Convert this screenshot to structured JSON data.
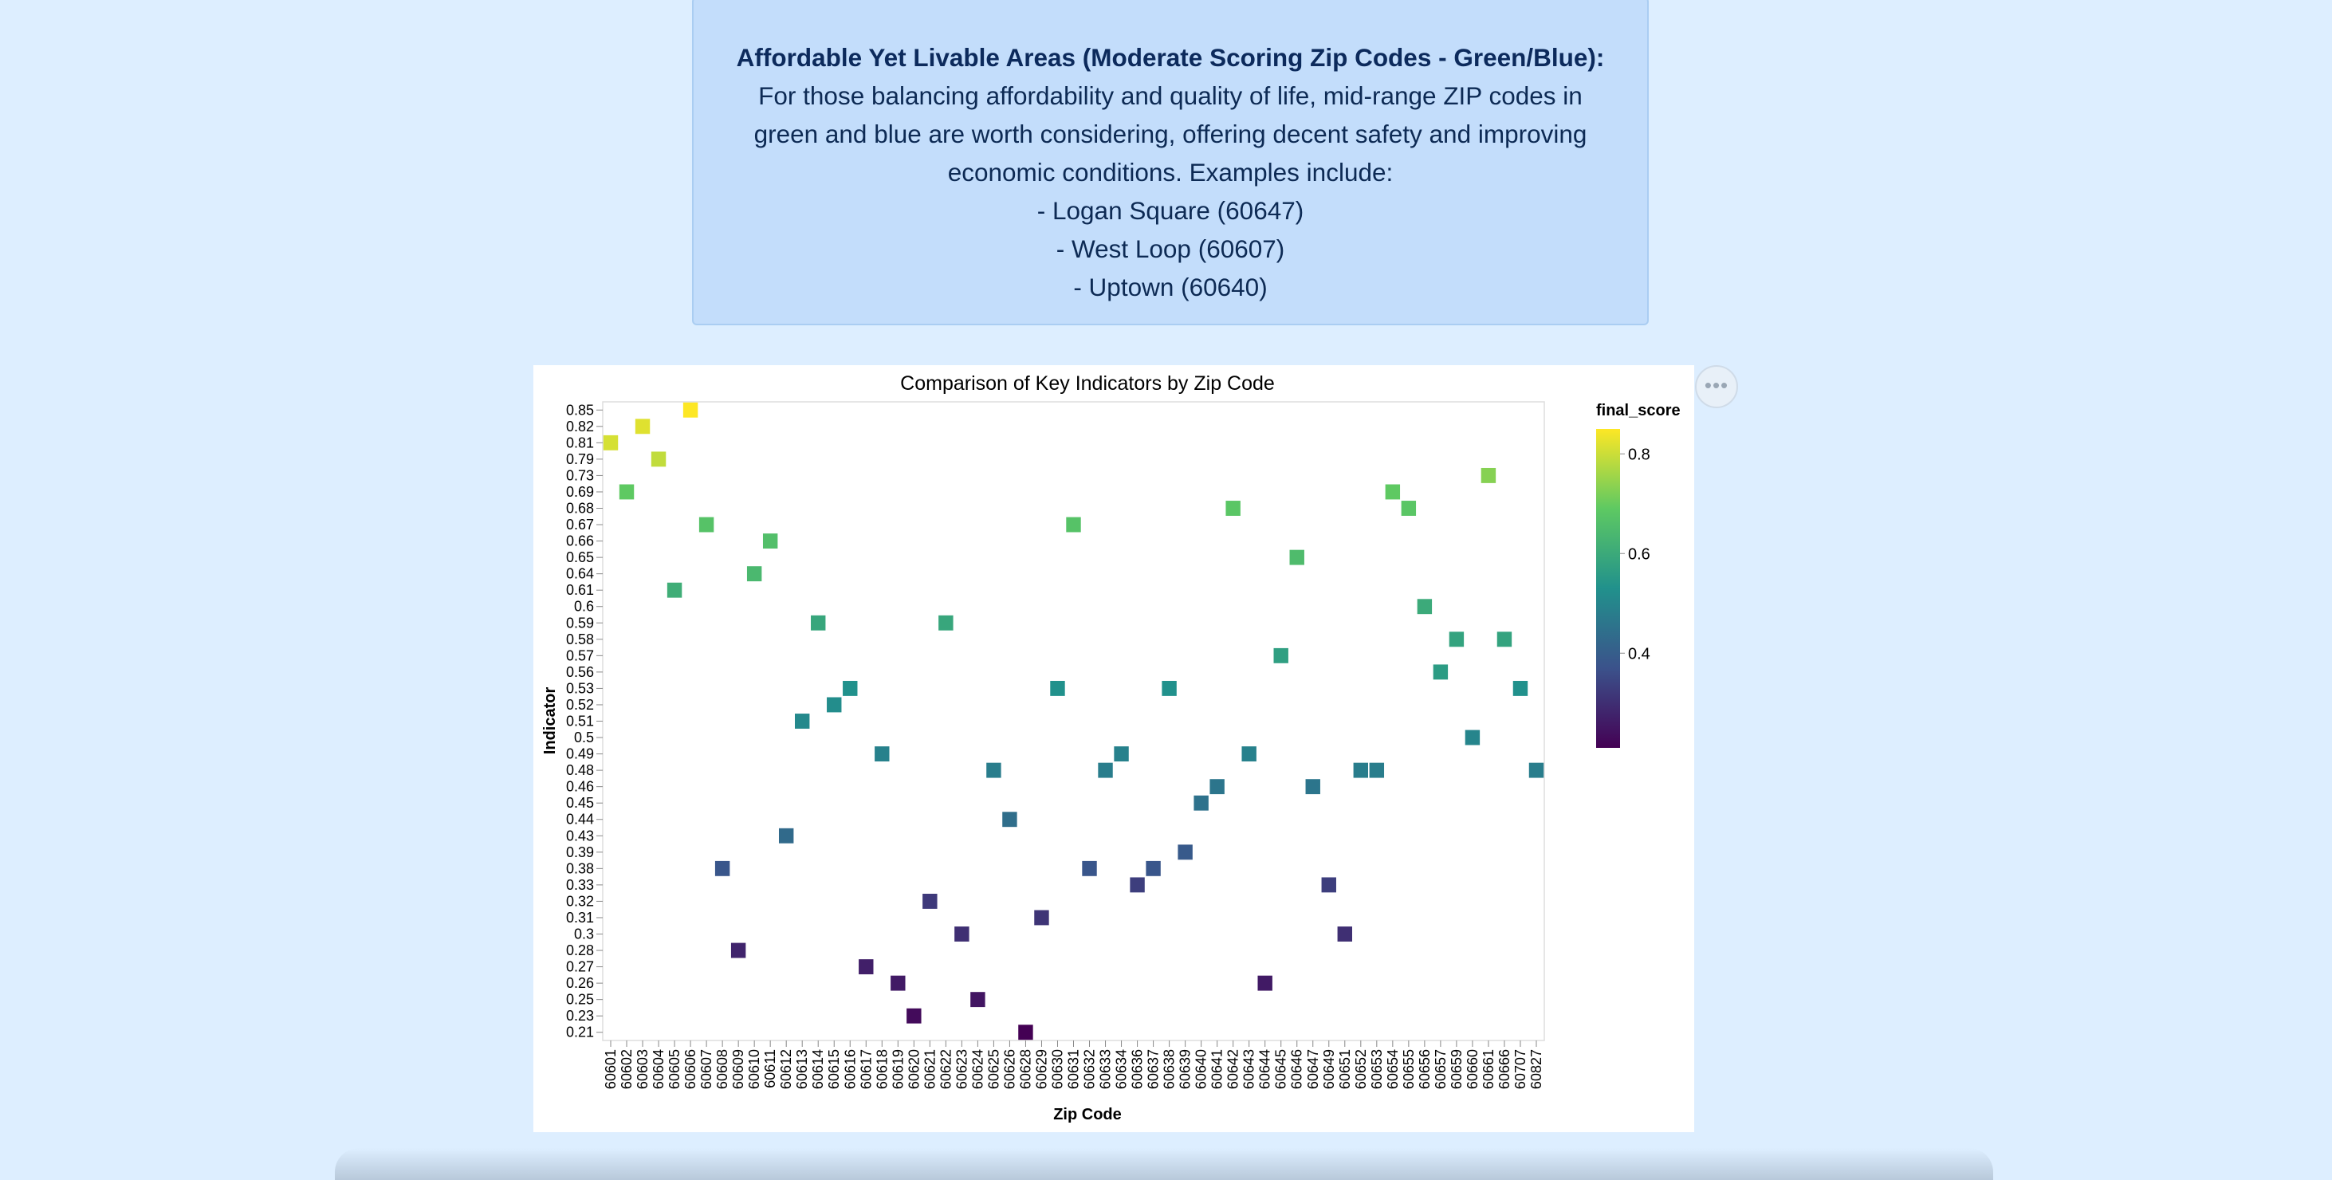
{
  "info": {
    "heading": "Affordable Yet Livable Areas (Moderate Scoring Zip Codes - Green/Blue):",
    "body_lines": [
      "For those balancing affordability and quality of life, mid-range ZIP codes in",
      "green and blue are worth considering, offering decent safety and improving",
      "economic conditions. Examples include:",
      "- Logan Square (60647)",
      "- West Loop (60607)",
      "- Uptown (60640)"
    ]
  },
  "actions_icon": "ellipsis-icon",
  "chart_data": {
    "type": "heatmap",
    "title": "Comparison of Key Indicators by Zip Code",
    "xlabel": "Zip Code",
    "ylabel": "Indicator",
    "legend_title": "final_score",
    "legend_ticks": [
      "0.8",
      "0.6",
      "0.4"
    ],
    "color_scale": "viridis",
    "color_domain": [
      0.21,
      0.85
    ],
    "legend_placement": "right",
    "grid": false,
    "y_categories": [
      "0.85",
      "0.82",
      "0.81",
      "0.79",
      "0.73",
      "0.69",
      "0.68",
      "0.67",
      "0.66",
      "0.65",
      "0.64",
      "0.61",
      "0.6",
      "0.59",
      "0.58",
      "0.57",
      "0.56",
      "0.53",
      "0.52",
      "0.51",
      "0.5",
      "0.49",
      "0.48",
      "0.46",
      "0.45",
      "0.44",
      "0.43",
      "0.39",
      "0.38",
      "0.33",
      "0.32",
      "0.31",
      "0.3",
      "0.28",
      "0.27",
      "0.26",
      "0.25",
      "0.23",
      "0.21"
    ],
    "x_categories": [
      "60601",
      "60602",
      "60603",
      "60604",
      "60605",
      "60606",
      "60607",
      "60608",
      "60609",
      "60610",
      "60611",
      "60612",
      "60613",
      "60614",
      "60615",
      "60616",
      "60617",
      "60618",
      "60619",
      "60620",
      "60621",
      "60622",
      "60623",
      "60624",
      "60625",
      "60626",
      "60628",
      "60629",
      "60630",
      "60631",
      "60632",
      "60633",
      "60634",
      "60636",
      "60637",
      "60638",
      "60639",
      "60640",
      "60641",
      "60642",
      "60643",
      "60644",
      "60645",
      "60646",
      "60647",
      "60649",
      "60651",
      "60652",
      "60653",
      "60654",
      "60655",
      "60656",
      "60657",
      "60659",
      "60660",
      "60661",
      "60666",
      "60707",
      "60827"
    ],
    "cells": [
      {
        "x": "60601",
        "y": "0.81"
      },
      {
        "x": "60602",
        "y": "0.69"
      },
      {
        "x": "60603",
        "y": "0.82"
      },
      {
        "x": "60604",
        "y": "0.79"
      },
      {
        "x": "60605",
        "y": "0.61"
      },
      {
        "x": "60606",
        "y": "0.85"
      },
      {
        "x": "60607",
        "y": "0.67"
      },
      {
        "x": "60608",
        "y": "0.38"
      },
      {
        "x": "60609",
        "y": "0.28"
      },
      {
        "x": "60610",
        "y": "0.64"
      },
      {
        "x": "60611",
        "y": "0.66"
      },
      {
        "x": "60612",
        "y": "0.43"
      },
      {
        "x": "60613",
        "y": "0.51"
      },
      {
        "x": "60614",
        "y": "0.59"
      },
      {
        "x": "60615",
        "y": "0.52"
      },
      {
        "x": "60616",
        "y": "0.53"
      },
      {
        "x": "60617",
        "y": "0.27"
      },
      {
        "x": "60618",
        "y": "0.49"
      },
      {
        "x": "60619",
        "y": "0.26"
      },
      {
        "x": "60620",
        "y": "0.23"
      },
      {
        "x": "60621",
        "y": "0.32"
      },
      {
        "x": "60622",
        "y": "0.59"
      },
      {
        "x": "60623",
        "y": "0.3"
      },
      {
        "x": "60624",
        "y": "0.25"
      },
      {
        "x": "60625",
        "y": "0.48"
      },
      {
        "x": "60626",
        "y": "0.44"
      },
      {
        "x": "60628",
        "y": "0.21"
      },
      {
        "x": "60629",
        "y": "0.31"
      },
      {
        "x": "60630",
        "y": "0.53"
      },
      {
        "x": "60631",
        "y": "0.67"
      },
      {
        "x": "60632",
        "y": "0.38"
      },
      {
        "x": "60633",
        "y": "0.48"
      },
      {
        "x": "60634",
        "y": "0.49"
      },
      {
        "x": "60636",
        "y": "0.33"
      },
      {
        "x": "60637",
        "y": "0.38"
      },
      {
        "x": "60638",
        "y": "0.53"
      },
      {
        "x": "60639",
        "y": "0.39"
      },
      {
        "x": "60640",
        "y": "0.45"
      },
      {
        "x": "60641",
        "y": "0.46"
      },
      {
        "x": "60642",
        "y": "0.68"
      },
      {
        "x": "60643",
        "y": "0.49"
      },
      {
        "x": "60644",
        "y": "0.26"
      },
      {
        "x": "60645",
        "y": "0.57"
      },
      {
        "x": "60646",
        "y": "0.65"
      },
      {
        "x": "60647",
        "y": "0.46"
      },
      {
        "x": "60649",
        "y": "0.33"
      },
      {
        "x": "60651",
        "y": "0.3"
      },
      {
        "x": "60652",
        "y": "0.48"
      },
      {
        "x": "60653",
        "y": "0.48"
      },
      {
        "x": "60654",
        "y": "0.69"
      },
      {
        "x": "60655",
        "y": "0.68"
      },
      {
        "x": "60656",
        "y": "0.6"
      },
      {
        "x": "60657",
        "y": "0.56"
      },
      {
        "x": "60659",
        "y": "0.58"
      },
      {
        "x": "60660",
        "y": "0.5"
      },
      {
        "x": "60661",
        "y": "0.73"
      },
      {
        "x": "60666",
        "y": "0.58"
      },
      {
        "x": "60707",
        "y": "0.53"
      },
      {
        "x": "60827",
        "y": "0.48"
      }
    ]
  }
}
